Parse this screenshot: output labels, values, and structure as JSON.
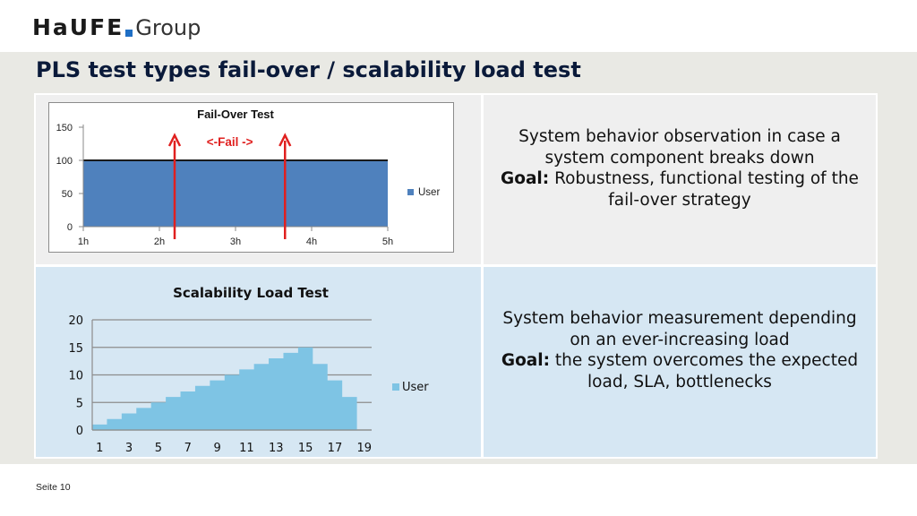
{
  "header": {
    "logo_mark": "HaUFE",
    "logo_group": "Group"
  },
  "slide": {
    "title": "PLS test types fail-over / scalability load test",
    "footer": "Seite 10"
  },
  "rows": [
    {
      "description": {
        "line1": "System behavior observation in case a system component breaks down",
        "goal_label": "Goal:",
        "goal_text": "Robustness, functional testing of the fail-over strategy"
      }
    },
    {
      "description": {
        "line1": "System behavior measurement depending on an ever-increasing load",
        "goal_label": "Goal:",
        "goal_text": "the system overcomes the expected load, SLA, bottlenecks"
      }
    }
  ],
  "chart_data": [
    {
      "type": "area",
      "title": "Fail-Over Test",
      "x": [
        "1h",
        "2h",
        "3h",
        "4h",
        "5h"
      ],
      "series": [
        {
          "name": "User",
          "values": [
            100,
            100,
            100,
            100,
            100
          ]
        }
      ],
      "ylim": [
        0,
        150
      ],
      "yticks": [
        0,
        50,
        100,
        150
      ],
      "annotation": "<-Fail ->",
      "markers_at_x": [
        2.2,
        3.65
      ],
      "legend": "right",
      "colors": {
        "series": "#4f81bd",
        "marker": "#e0201f",
        "line": "#1a1a1a"
      }
    },
    {
      "type": "area",
      "title": "Scalability Load Test",
      "x": [
        1,
        2,
        3,
        4,
        5,
        6,
        7,
        8,
        9,
        10,
        11,
        12,
        13,
        14,
        15,
        16,
        17,
        18,
        19
      ],
      "xticks": [
        1,
        3,
        5,
        7,
        9,
        11,
        13,
        15,
        17,
        19
      ],
      "series": [
        {
          "name": "User",
          "values": [
            1,
            2,
            3,
            4,
            5,
            6,
            7,
            8,
            9,
            10,
            11,
            12,
            13,
            14,
            15,
            12,
            9,
            6,
            0
          ]
        }
      ],
      "ylim": [
        0,
        20
      ],
      "yticks": [
        0,
        5,
        10,
        15,
        20
      ],
      "legend": "right",
      "colors": {
        "series": "#7ec4e4"
      }
    }
  ]
}
